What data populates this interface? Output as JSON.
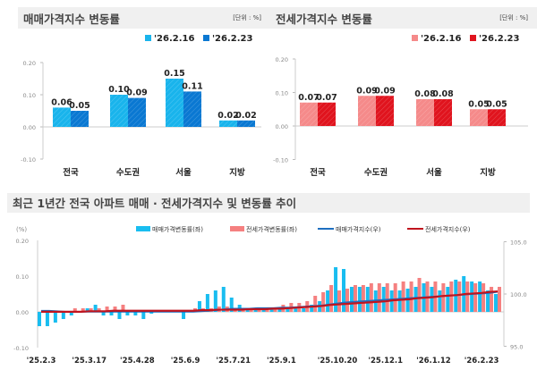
{
  "chart_data": [
    {
      "type": "bar",
      "title": "매매가격지수 변동률",
      "unit": "[단위 : %]",
      "categories": [
        "전국",
        "수도권",
        "서울",
        "지방"
      ],
      "series": [
        {
          "name": "'26.2.16",
          "values": [
            0.06,
            0.1,
            0.15,
            0.02
          ],
          "color": "#19b4ec"
        },
        {
          "name": "'26.2.23",
          "values": [
            0.05,
            0.09,
            0.11,
            0.02
          ],
          "color": "#0a78d2"
        }
      ],
      "ylim": [
        -0.1,
        0.2
      ],
      "yticks": [
        "0.20",
        "0.10",
        "0.00",
        "-0.10"
      ],
      "legend": "top-right"
    },
    {
      "type": "bar",
      "title": "전세가격지수 변동률",
      "unit": "[단위 : %]",
      "categories": [
        "전국",
        "수도권",
        "서울",
        "지방"
      ],
      "series": [
        {
          "name": "'26.2.16",
          "values": [
            0.07,
            0.09,
            0.08,
            0.05
          ],
          "color": "#f58a8a"
        },
        {
          "name": "'26.2.23",
          "values": [
            0.07,
            0.09,
            0.08,
            0.05
          ],
          "color": "#e0141e"
        }
      ],
      "ylim": [
        -0.1,
        0.2
      ],
      "yticks": [
        "0.20",
        "0.10",
        "0.00",
        "-0.10"
      ],
      "legend": "top-right"
    },
    {
      "type": "bar+line",
      "title": "최근 1년간 전국 아파트 매매 · 전세가격지수 및 변동률 추이",
      "ylabel": "(%)",
      "ylim": [
        -0.1,
        0.2
      ],
      "yticks": [
        "0.20",
        "0.10",
        "0.00",
        "-0.10"
      ],
      "y2lim": [
        95,
        105
      ],
      "y2ticks": [
        "105.0",
        "100.0",
        "95.0"
      ],
      "xticks": [
        "'25.2.3",
        "'25.3.17",
        "'25.4.28",
        "'25.6.9",
        "'25.7.21",
        "'25.9.1",
        "'25.10.20",
        "'25.12.1",
        "'26.1.12",
        "'26.2.23"
      ],
      "series": [
        {
          "name": "매매가격변동률(좌)",
          "type": "bar",
          "color": "#19bdf0",
          "values": [
            -0.04,
            -0.04,
            -0.03,
            -0.02,
            -0.01,
            0.0,
            0.01,
            0.02,
            -0.01,
            -0.01,
            -0.02,
            -0.01,
            -0.01,
            -0.02,
            -0.005,
            0,
            0,
            0,
            -0.02,
            0,
            0.03,
            0.05,
            0.06,
            0.07,
            0.04,
            0.02,
            0.01,
            0.01,
            0.01,
            0.01,
            0.01,
            0.01,
            0.01,
            0.01,
            0.02,
            0.03,
            0.06,
            0.125,
            0.12,
            0.07,
            0.07,
            0.07,
            0.06,
            0.07,
            0.06,
            0.06,
            0.065,
            0.07,
            0.08,
            0.07,
            0.06,
            0.07,
            0.09,
            0.1,
            0.085,
            0.085,
            0.06,
            0.05
          ]
        },
        {
          "name": "전세가격변동률(좌)",
          "type": "bar",
          "color": "#f58080",
          "values": [
            0,
            0,
            0,
            0,
            0.01,
            0.01,
            0.01,
            0.01,
            0.015,
            0.015,
            0.02,
            0,
            0,
            0,
            0,
            0,
            0,
            0,
            0,
            0.01,
            0.01,
            0.01,
            0.015,
            0.015,
            0.01,
            0.01,
            0.01,
            0.01,
            0.01,
            0.01,
            0.02,
            0.025,
            0.025,
            0.03,
            0.045,
            0.055,
            0.075,
            0.06,
            0.065,
            0.075,
            0.075,
            0.08,
            0.08,
            0.08,
            0.08,
            0.085,
            0.085,
            0.095,
            0.085,
            0.085,
            0.08,
            0.085,
            0.085,
            0.085,
            0.08,
            0.08,
            0.07,
            0.07
          ]
        },
        {
          "name": "매매가격지수(우)",
          "type": "line",
          "color": "#1e6fc0",
          "values": [
            98.4,
            98.4,
            98.35,
            98.3,
            98.3,
            98.3,
            98.3,
            98.3,
            98.3,
            98.3,
            98.3,
            98.3,
            98.3,
            98.3,
            98.3,
            98.3,
            98.3,
            98.3,
            98.3,
            98.3,
            98.35,
            98.4,
            98.45,
            98.55,
            98.6,
            98.6,
            98.6,
            98.65,
            98.65,
            98.65,
            98.7,
            98.7,
            98.75,
            98.8,
            98.85,
            98.9,
            99.0,
            99.1,
            99.2,
            99.25,
            99.3,
            99.35,
            99.4,
            99.45,
            99.5,
            99.55,
            99.6,
            99.65,
            99.7,
            99.75,
            99.8,
            99.85,
            99.9,
            99.95,
            100.0,
            100.05,
            100.1,
            100.2
          ]
        },
        {
          "name": "전세가격지수(우)",
          "type": "line",
          "color": "#c0141e",
          "values": [
            98.3,
            98.3,
            98.3,
            98.3,
            98.3,
            98.3,
            98.35,
            98.35,
            98.35,
            98.4,
            98.4,
            98.4,
            98.4,
            98.4,
            98.4,
            98.4,
            98.4,
            98.4,
            98.4,
            98.4,
            98.45,
            98.45,
            98.5,
            98.5,
            98.5,
            98.5,
            98.55,
            98.55,
            98.55,
            98.6,
            98.6,
            98.65,
            98.7,
            98.75,
            98.8,
            98.85,
            98.95,
            99.0,
            99.05,
            99.1,
            99.15,
            99.2,
            99.25,
            99.3,
            99.4,
            99.45,
            99.5,
            99.6,
            99.65,
            99.7,
            99.8,
            99.85,
            99.9,
            100.0,
            100.05,
            100.1,
            100.2,
            100.25
          ]
        }
      ],
      "legend": "top"
    }
  ]
}
